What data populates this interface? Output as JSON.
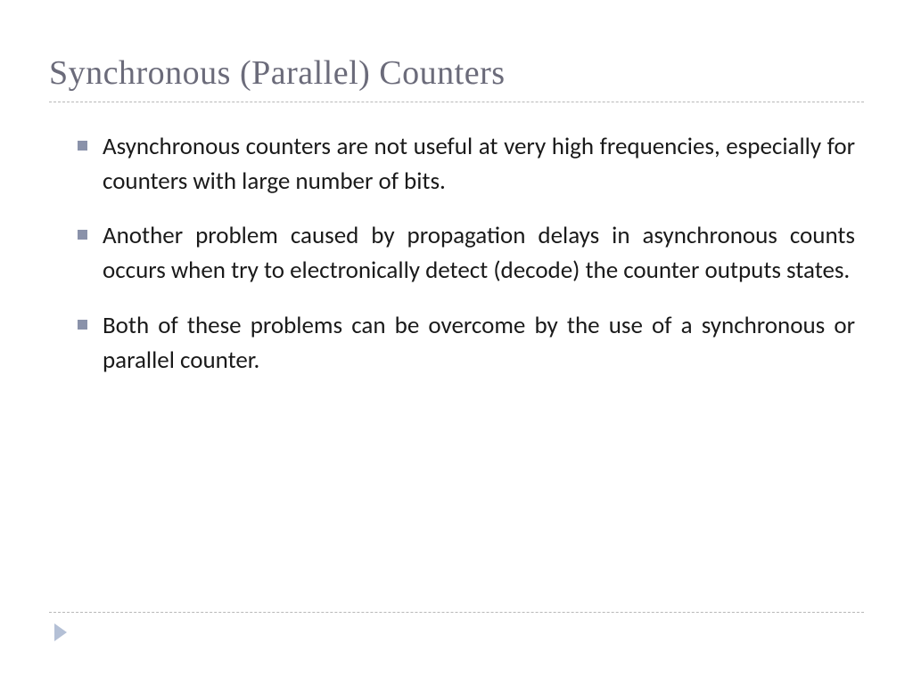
{
  "slide": {
    "title": "Synchronous (Parallel) Counters",
    "bullets": [
      "Asynchronous counters are not useful at very high frequencies, especially for counters with large number of bits.",
      "Another problem caused by propagation delays in asynchronous counts occurs when try to electronically detect (decode) the counter outputs states.",
      "Both of these problems can be overcome by the use of a synchronous or parallel counter."
    ]
  },
  "style": {
    "title_color": "#6b6b7a",
    "title_fontsize": 38,
    "bullet_marker_color": "#8a92aa",
    "body_fontsize": 27,
    "body_color": "#1a1a1a",
    "divider_color": "#b8b8b8",
    "arrow_color": "#b4c0d6",
    "background_color": "#ffffff"
  }
}
